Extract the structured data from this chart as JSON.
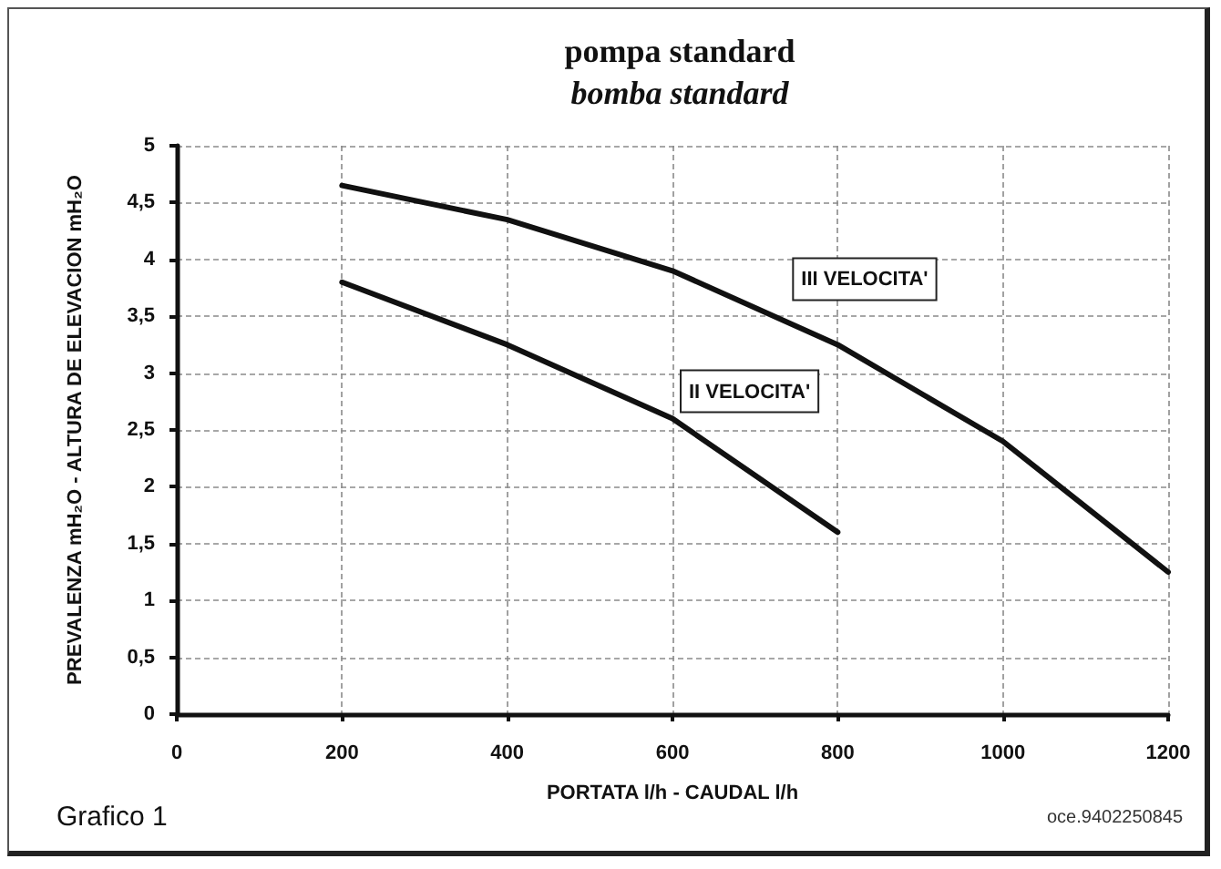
{
  "chart_data": {
    "type": "line",
    "title": "pompa standard",
    "subtitle": "bomba standard",
    "xlabel": "PORTATA l/h - CAUDAL l/h",
    "ylabel": "PREVALENZA mH₂O - ALTURA DE ELEVACION mH₂O",
    "annotations": [
      "Grafico 1",
      "oce.9402250845"
    ],
    "x": [
      200,
      400,
      600,
      800,
      1000,
      1200
    ],
    "series": [
      {
        "name": "II VELOCITA'",
        "color": "#111111",
        "x": [
          200,
          400,
          600,
          800
        ],
        "values": [
          3.8,
          3.25,
          2.6,
          1.6
        ]
      },
      {
        "name": "III VELOCITA'",
        "color": "#111111",
        "values": [
          4.65,
          4.35,
          3.9,
          3.25,
          2.4,
          1.25
        ]
      }
    ],
    "xlim": [
      0,
      1200
    ],
    "xticks": [
      0,
      200,
      400,
      600,
      800,
      1000,
      1200
    ],
    "ylim": [
      0,
      5
    ],
    "yticks": [
      0,
      {
        "value": 0.5,
        "label": "0,5"
      },
      1,
      {
        "value": 1.5,
        "label": "1,5"
      },
      2,
      {
        "value": 2.5,
        "label": "2,5"
      },
      3,
      {
        "value": 3.5,
        "label": "3,5"
      },
      4,
      {
        "value": 4.5,
        "label": "4,5"
      },
      5
    ],
    "grid": true
  }
}
